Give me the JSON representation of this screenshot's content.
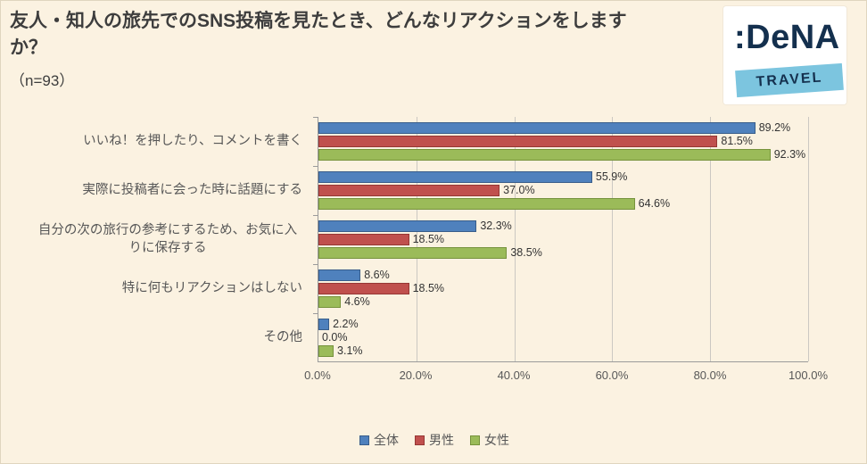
{
  "page": {
    "background": "#fbf2e1"
  },
  "logo": {
    "brand": ":DeNA",
    "sub": "TRAVEL",
    "box_color": "#ffffff",
    "ribbon_color": "#7cc5df",
    "text_color": "#14304e"
  },
  "chart_data": {
    "type": "bar",
    "orientation": "horizontal",
    "title": "友人・知人の旅先でのSNS投稿を見たとき、どんなリアクションをしますか？",
    "subtitle": "（n=93）",
    "categories": [
      "いいね！を押したり、コメントを書く",
      "実際に投稿者に会った時に話題にする",
      "自分の次の旅行の参考にするため、お気に入りに保存する",
      "特に何もリアクションはしない",
      "その他"
    ],
    "series": [
      {
        "name": "全体",
        "color": "#4f81bd",
        "edge": "#385d8a",
        "values": [
          89.2,
          55.9,
          32.3,
          8.6,
          2.2
        ]
      },
      {
        "name": "男性",
        "color": "#c0504d",
        "edge": "#953734",
        "values": [
          81.5,
          37.0,
          18.5,
          18.5,
          0.0
        ]
      },
      {
        "name": "女性",
        "color": "#9bbb59",
        "edge": "#76923c",
        "values": [
          92.3,
          64.6,
          38.5,
          4.6,
          3.1
        ]
      }
    ],
    "xlim": [
      0,
      100
    ],
    "xticks": [
      "0.0%",
      "20.0%",
      "40.0%",
      "60.0%",
      "80.0%",
      "100.0%"
    ],
    "value_label_format": "0.0%",
    "grid": "vertical",
    "legend_position": "bottom"
  }
}
